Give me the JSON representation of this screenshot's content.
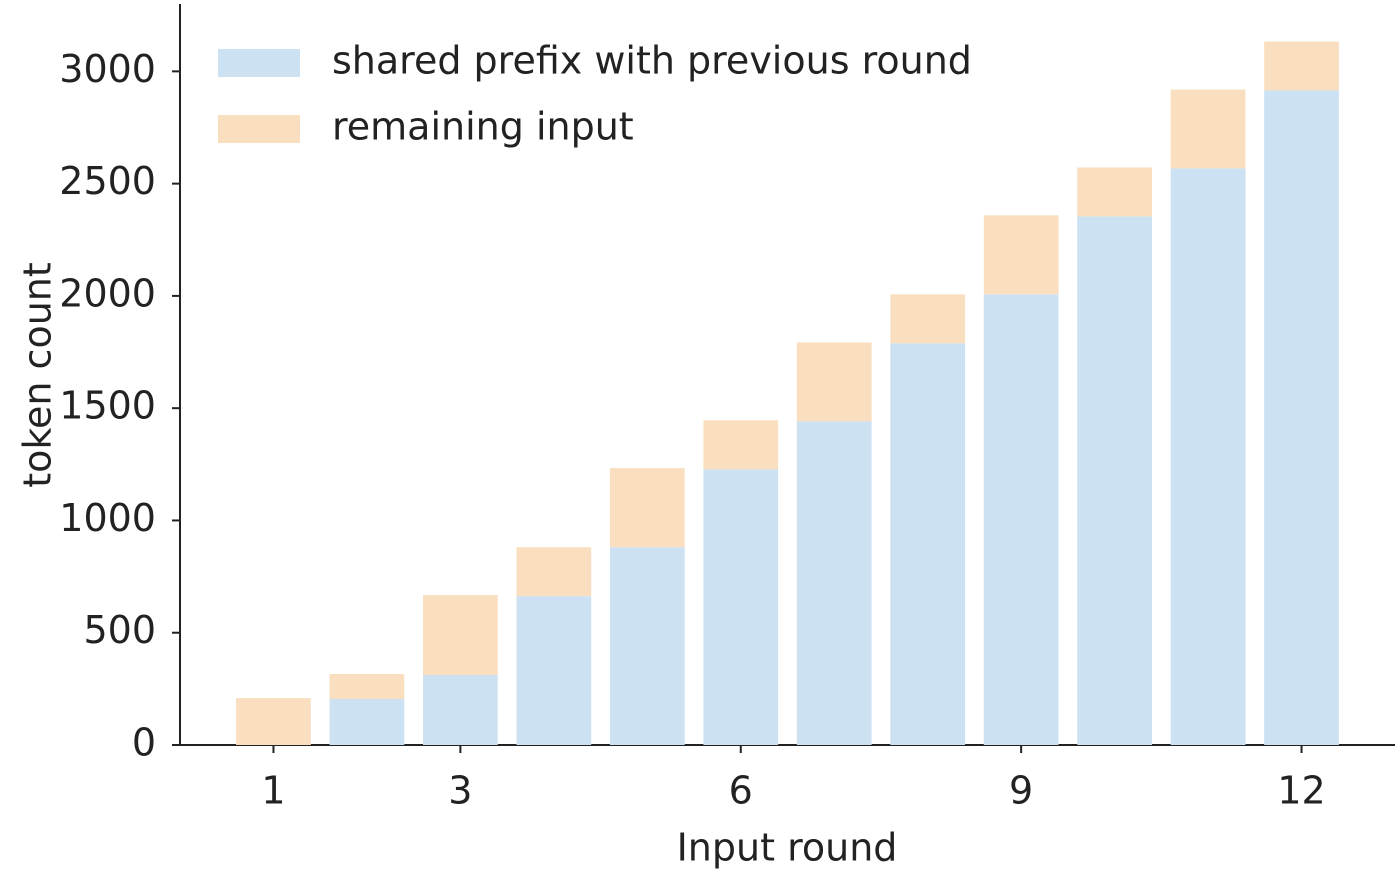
{
  "chart_data": {
    "type": "stacked-bar",
    "x_label": "Input round",
    "y_label": "token count",
    "x": [
      1,
      2,
      3,
      4,
      5,
      6,
      7,
      8,
      9,
      10,
      11,
      12
    ],
    "series": [
      {
        "name": "shared prefix with previous round",
        "color": "#cce1f2",
        "values": [
          0,
          205,
          312,
          663,
          881,
          1228,
          1442,
          1789,
          2007,
          2354,
          2568,
          2915
        ]
      },
      {
        "name": "remaining input",
        "color": "#f9dfc0",
        "values": [
          209,
          111,
          356,
          218,
          352,
          218,
          351,
          218,
          352,
          218,
          351,
          218
        ]
      }
    ],
    "xlim": [
      0,
      13
    ],
    "xticks": [
      1,
      3,
      6,
      9,
      12
    ],
    "ylim": [
      0,
      3300
    ],
    "yticks": [
      0,
      500,
      1000,
      1500,
      2000,
      2500,
      3000
    ],
    "grid": false,
    "legend": "upper left"
  }
}
